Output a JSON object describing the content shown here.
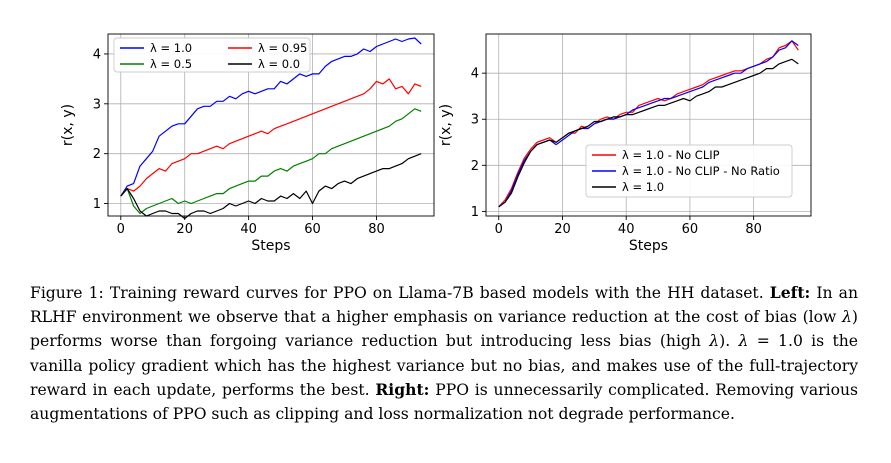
{
  "chart_data": [
    {
      "type": "line",
      "xlabel": "Steps",
      "ylabel": "r(x, y)",
      "xlim": [
        -4,
        98
      ],
      "ylim": [
        0.75,
        4.4
      ],
      "xticks": [
        0,
        20,
        40,
        60,
        80
      ],
      "yticks": [
        1,
        2,
        3,
        4
      ],
      "grid": true,
      "legend_position": "upper-left",
      "legend_columns": 2,
      "series": [
        {
          "name": "λ = 1.0",
          "color": "#0000ff",
          "x": [
            0,
            2,
            4,
            6,
            8,
            10,
            12,
            14,
            16,
            18,
            20,
            22,
            24,
            26,
            28,
            30,
            32,
            34,
            36,
            38,
            40,
            42,
            44,
            46,
            48,
            50,
            52,
            54,
            56,
            58,
            60,
            62,
            64,
            66,
            68,
            70,
            72,
            74,
            76,
            78,
            80,
            82,
            84,
            86,
            88,
            90,
            92,
            94
          ],
          "y": [
            1.15,
            1.35,
            1.4,
            1.75,
            1.9,
            2.05,
            2.35,
            2.45,
            2.55,
            2.6,
            2.6,
            2.75,
            2.9,
            2.95,
            2.95,
            3.05,
            3.05,
            3.15,
            3.1,
            3.2,
            3.25,
            3.2,
            3.25,
            3.3,
            3.3,
            3.45,
            3.4,
            3.5,
            3.6,
            3.55,
            3.6,
            3.6,
            3.75,
            3.85,
            3.9,
            3.95,
            3.95,
            4.0,
            4.1,
            4.05,
            4.15,
            4.2,
            4.25,
            4.3,
            4.25,
            4.3,
            4.32,
            4.2
          ]
        },
        {
          "name": "λ = 0.95",
          "color": "#ff0000",
          "x": [
            0,
            2,
            4,
            6,
            8,
            10,
            12,
            14,
            16,
            18,
            20,
            22,
            24,
            26,
            28,
            30,
            32,
            34,
            36,
            38,
            40,
            42,
            44,
            46,
            48,
            50,
            52,
            54,
            56,
            58,
            60,
            62,
            64,
            66,
            68,
            70,
            72,
            74,
            76,
            78,
            80,
            82,
            84,
            86,
            88,
            90,
            92,
            94
          ],
          "y": [
            1.15,
            1.3,
            1.25,
            1.35,
            1.5,
            1.6,
            1.7,
            1.65,
            1.8,
            1.85,
            1.9,
            2.0,
            2.0,
            2.05,
            2.1,
            2.15,
            2.1,
            2.2,
            2.25,
            2.3,
            2.35,
            2.4,
            2.45,
            2.4,
            2.5,
            2.55,
            2.6,
            2.65,
            2.7,
            2.75,
            2.8,
            2.85,
            2.9,
            2.95,
            3.0,
            3.05,
            3.1,
            3.15,
            3.2,
            3.3,
            3.45,
            3.4,
            3.5,
            3.3,
            3.35,
            3.2,
            3.4,
            3.35
          ]
        },
        {
          "name": "λ = 0.5",
          "color": "#008000",
          "x": [
            0,
            2,
            4,
            6,
            8,
            10,
            12,
            14,
            16,
            18,
            20,
            22,
            24,
            26,
            28,
            30,
            32,
            34,
            36,
            38,
            40,
            42,
            44,
            46,
            48,
            50,
            52,
            54,
            56,
            58,
            60,
            62,
            64,
            66,
            68,
            70,
            72,
            74,
            76,
            78,
            80,
            82,
            84,
            86,
            88,
            90,
            92,
            94
          ],
          "y": [
            1.15,
            1.3,
            0.95,
            0.8,
            0.9,
            0.95,
            1.0,
            1.05,
            1.1,
            1.0,
            1.05,
            1.0,
            1.05,
            1.1,
            1.15,
            1.2,
            1.2,
            1.3,
            1.35,
            1.4,
            1.45,
            1.45,
            1.55,
            1.55,
            1.65,
            1.7,
            1.65,
            1.75,
            1.8,
            1.85,
            1.9,
            2.0,
            2.0,
            2.1,
            2.15,
            2.2,
            2.25,
            2.3,
            2.35,
            2.4,
            2.45,
            2.5,
            2.55,
            2.65,
            2.7,
            2.8,
            2.9,
            2.85
          ]
        },
        {
          "name": "λ = 0.0",
          "color": "#000000",
          "x": [
            0,
            2,
            4,
            6,
            8,
            10,
            12,
            14,
            16,
            18,
            20,
            22,
            24,
            26,
            28,
            30,
            32,
            34,
            36,
            38,
            40,
            42,
            44,
            46,
            48,
            50,
            52,
            54,
            56,
            58,
            60,
            62,
            64,
            66,
            68,
            70,
            72,
            74,
            76,
            78,
            80,
            82,
            84,
            86,
            88,
            90,
            92,
            94
          ],
          "y": [
            1.15,
            1.3,
            1.1,
            0.85,
            0.75,
            0.8,
            0.85,
            0.85,
            0.8,
            0.8,
            0.7,
            0.8,
            0.85,
            0.85,
            0.8,
            0.85,
            0.9,
            1.0,
            0.95,
            1.0,
            1.05,
            1.0,
            1.1,
            1.05,
            1.05,
            1.15,
            1.1,
            1.2,
            1.1,
            1.25,
            1.0,
            1.25,
            1.35,
            1.3,
            1.4,
            1.45,
            1.4,
            1.5,
            1.55,
            1.6,
            1.65,
            1.7,
            1.7,
            1.75,
            1.8,
            1.9,
            1.95,
            2.0
          ]
        }
      ]
    },
    {
      "type": "line",
      "xlabel": "Steps",
      "ylabel": "r(x, y)",
      "xlim": [
        -4,
        98
      ],
      "ylim": [
        0.9,
        4.85
      ],
      "xticks": [
        0,
        20,
        40,
        60,
        80
      ],
      "yticks": [
        1,
        2,
        3,
        4
      ],
      "grid": true,
      "legend_position": "center-right",
      "legend_columns": 1,
      "series": [
        {
          "name": "λ = 1.0 - No CLIP",
          "color": "#ff0000",
          "x": [
            0,
            2,
            4,
            6,
            8,
            10,
            12,
            14,
            16,
            18,
            20,
            22,
            24,
            26,
            28,
            30,
            32,
            34,
            36,
            38,
            40,
            42,
            44,
            46,
            48,
            50,
            52,
            54,
            56,
            58,
            60,
            62,
            64,
            66,
            68,
            70,
            72,
            74,
            76,
            78,
            80,
            82,
            84,
            86,
            88,
            90,
            92,
            94
          ],
          "y": [
            1.1,
            1.25,
            1.5,
            1.85,
            2.15,
            2.35,
            2.5,
            2.55,
            2.6,
            2.5,
            2.6,
            2.7,
            2.7,
            2.85,
            2.8,
            2.9,
            3.0,
            3.05,
            3.0,
            3.1,
            3.15,
            3.15,
            3.3,
            3.35,
            3.4,
            3.45,
            3.4,
            3.45,
            3.55,
            3.6,
            3.65,
            3.7,
            3.75,
            3.85,
            3.9,
            3.95,
            4.0,
            4.05,
            4.05,
            4.1,
            4.15,
            4.2,
            4.3,
            4.35,
            4.55,
            4.6,
            4.7,
            4.5
          ]
        },
        {
          "name": "λ = 1.0 - No CLIP - No Ratio",
          "color": "#0000ff",
          "x": [
            0,
            2,
            4,
            6,
            8,
            10,
            12,
            14,
            16,
            18,
            20,
            22,
            24,
            26,
            28,
            30,
            32,
            34,
            36,
            38,
            40,
            42,
            44,
            46,
            48,
            50,
            52,
            54,
            56,
            58,
            60,
            62,
            64,
            66,
            68,
            70,
            72,
            74,
            76,
            78,
            80,
            82,
            84,
            86,
            88,
            90,
            92,
            94
          ],
          "y": [
            1.1,
            1.2,
            1.45,
            1.8,
            2.1,
            2.3,
            2.45,
            2.5,
            2.55,
            2.45,
            2.55,
            2.65,
            2.75,
            2.8,
            2.8,
            2.9,
            2.95,
            3.0,
            3.0,
            3.05,
            3.1,
            3.2,
            3.25,
            3.3,
            3.35,
            3.4,
            3.45,
            3.45,
            3.5,
            3.55,
            3.6,
            3.65,
            3.7,
            3.8,
            3.85,
            3.9,
            3.95,
            4.0,
            4.0,
            4.1,
            4.15,
            4.2,
            4.25,
            4.35,
            4.5,
            4.55,
            4.7,
            4.6
          ]
        },
        {
          "name": "λ = 1.0",
          "color": "#000000",
          "x": [
            0,
            2,
            4,
            6,
            8,
            10,
            12,
            14,
            16,
            18,
            20,
            22,
            24,
            26,
            28,
            30,
            32,
            34,
            36,
            38,
            40,
            42,
            44,
            46,
            48,
            50,
            52,
            54,
            56,
            58,
            60,
            62,
            64,
            66,
            68,
            70,
            72,
            74,
            76,
            78,
            80,
            82,
            84,
            86,
            88,
            90,
            92,
            94
          ],
          "y": [
            1.1,
            1.2,
            1.4,
            1.75,
            2.05,
            2.3,
            2.45,
            2.5,
            2.55,
            2.5,
            2.6,
            2.7,
            2.75,
            2.8,
            2.85,
            2.95,
            2.95,
            3.0,
            3.05,
            3.05,
            3.1,
            3.1,
            3.15,
            3.2,
            3.25,
            3.3,
            3.3,
            3.35,
            3.4,
            3.45,
            3.4,
            3.5,
            3.55,
            3.6,
            3.7,
            3.7,
            3.75,
            3.8,
            3.85,
            3.9,
            3.95,
            4.0,
            4.1,
            4.1,
            4.2,
            4.25,
            4.3,
            4.2
          ]
        }
      ]
    }
  ],
  "caption": {
    "label": "Figure 1:",
    "intro": " Training reward curves for PPO on Llama-7B based models with the HH dataset. ",
    "left_heading": "Left:",
    "text_1": " In an RLHF environment we observe that a higher emphasis on variance reduction at the cost of bias (low ",
    "lambda_1": "λ",
    "text_2": ") performs worse than forgoing variance reduction but introducing less bias (high ",
    "lambda_2": "λ",
    "text_3": "). ",
    "lambda_3": "λ",
    "text_4": " = 1.0 is the vanilla policy gradient which has the highest variance but no bias, and makes use of the full-trajectory reward in each update, performs the best. ",
    "right_heading": "Right:",
    "text_5": " PPO is unnecessarily complicated. Removing various augmentations of PPO such as clipping and loss normalization not degrade performance."
  }
}
